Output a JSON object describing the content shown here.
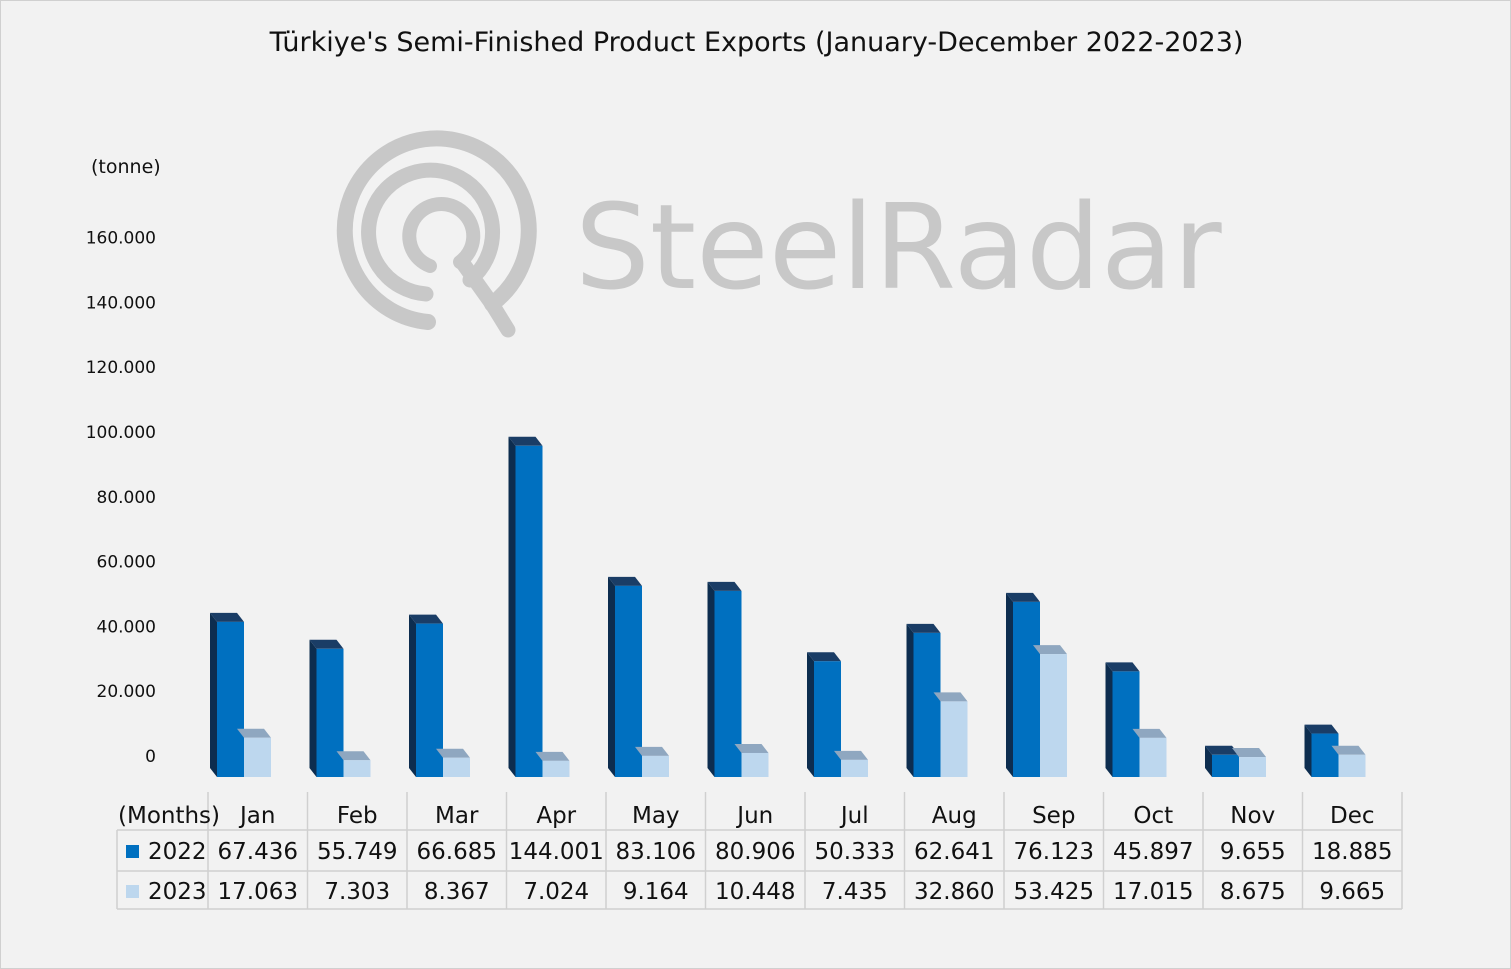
{
  "chart_data": {
    "type": "bar",
    "title": "Türkiye's Semi-Finished Product Exports (January-December 2022-2023)",
    "unit_label": "(tonne)",
    "xlabel": "(Months)",
    "ylabel": "",
    "categories": [
      "Jan",
      "Feb",
      "Mar",
      "Apr",
      "May",
      "Jun",
      "Jul",
      "Aug",
      "Sep",
      "Oct",
      "Nov",
      "Dec"
    ],
    "series": [
      {
        "name": "2022",
        "color": "#0070c0",
        "values": [
          67436,
          55749,
          66685,
          144001,
          83106,
          80906,
          50333,
          62641,
          76123,
          45897,
          9655,
          18885
        ],
        "value_labels": [
          "67.436",
          "55.749",
          "66.685",
          "144.001",
          "83.106",
          "80.906",
          "50.333",
          "62.641",
          "76.123",
          "45.897",
          "9.655",
          "18.885"
        ]
      },
      {
        "name": "2023",
        "color": "#bdd7ee",
        "values": [
          17063,
          7303,
          8367,
          7024,
          9164,
          10448,
          7435,
          32860,
          53425,
          17015,
          8675,
          9665
        ],
        "value_labels": [
          "17.063",
          "7.303",
          "8.367",
          "7.024",
          "9.164",
          "10.448",
          "7.435",
          "32.860",
          "53.425",
          "17.015",
          "8.675",
          "9.665"
        ]
      }
    ],
    "ylim": [
      0,
      160000
    ],
    "yticks": [
      0,
      20000,
      40000,
      60000,
      80000,
      100000,
      120000,
      140000,
      160000
    ],
    "ytick_labels": [
      "0",
      "20.000",
      "40.000",
      "60.000",
      "80.000",
      "100.000",
      "120.000",
      "140.000",
      "160.000"
    ],
    "grid": false,
    "legend": "data-table"
  },
  "watermark": {
    "text": "SteelRadar",
    "icon": "radar-logo-icon"
  }
}
